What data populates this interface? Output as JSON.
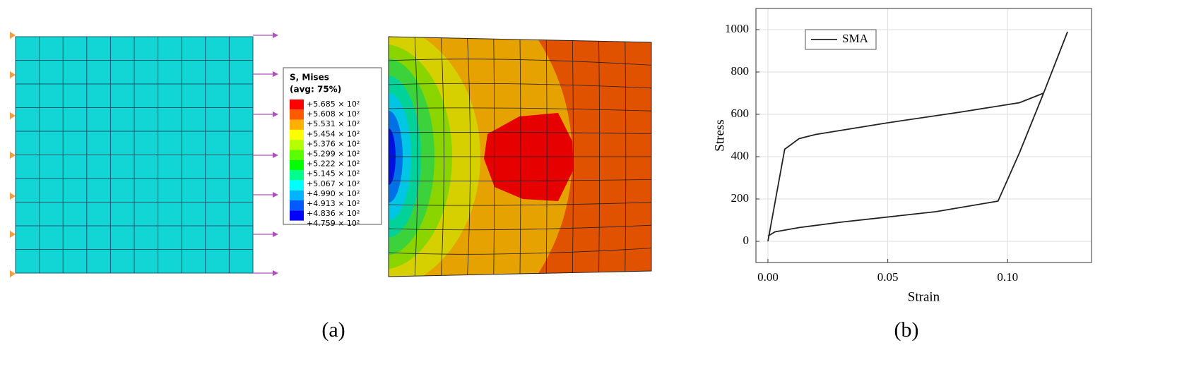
{
  "panel_a": {
    "caption": "(a)",
    "legend": {
      "title": "S, Mises",
      "subtitle": "(avg: 75%)",
      "labels": [
        "+5.685 × 10²",
        "+5.608 × 10²",
        "+5.531 × 10²",
        "+5.454 × 10²",
        "+5.376 × 10²",
        "+5.299 × 10²",
        "+5.222 × 10²",
        "+5.145 × 10²",
        "+5.067 × 10²",
        "+4.990 × 10²",
        "+4.913 × 10²",
        "+4.836 × 10²",
        "+4.759 × 10²"
      ],
      "colors": [
        "#ff0000",
        "#ff5a00",
        "#ffb000",
        "#ffff00",
        "#b4ff00",
        "#5aff00",
        "#00ff00",
        "#00ff8c",
        "#00ffff",
        "#00b4ff",
        "#005aff",
        "#0000ff"
      ]
    }
  },
  "panel_b": {
    "caption": "(b)"
  },
  "chart_data": {
    "type": "line",
    "xlabel": "Strain",
    "ylabel": "Stress",
    "x": [
      0,
      0.007,
      0.013,
      0.02,
      0.05,
      0.08,
      0.105,
      0.115,
      0.125,
      0.115,
      0.105,
      0.096,
      0.07,
      0.03,
      0.013,
      0.003,
      0
    ],
    "series": [
      {
        "name": "SMA",
        "color": "#222222",
        "values": [
          0,
          435,
          485,
          505,
          560,
          610,
          655,
          700,
          990,
          700,
          420,
          190,
          140,
          90,
          65,
          45,
          25
        ]
      }
    ],
    "xlim": [
      -0.005,
      0.135
    ],
    "ylim": [
      -100,
      1100
    ],
    "xticks": [
      {
        "value": 0,
        "label": "0.00"
      },
      {
        "value": 0.05,
        "label": "0.05"
      },
      {
        "value": 0.1,
        "label": "0.10"
      }
    ],
    "yticks": [
      0,
      200,
      400,
      600,
      800,
      1000
    ],
    "grid": true,
    "legend_loc": "upper left"
  }
}
